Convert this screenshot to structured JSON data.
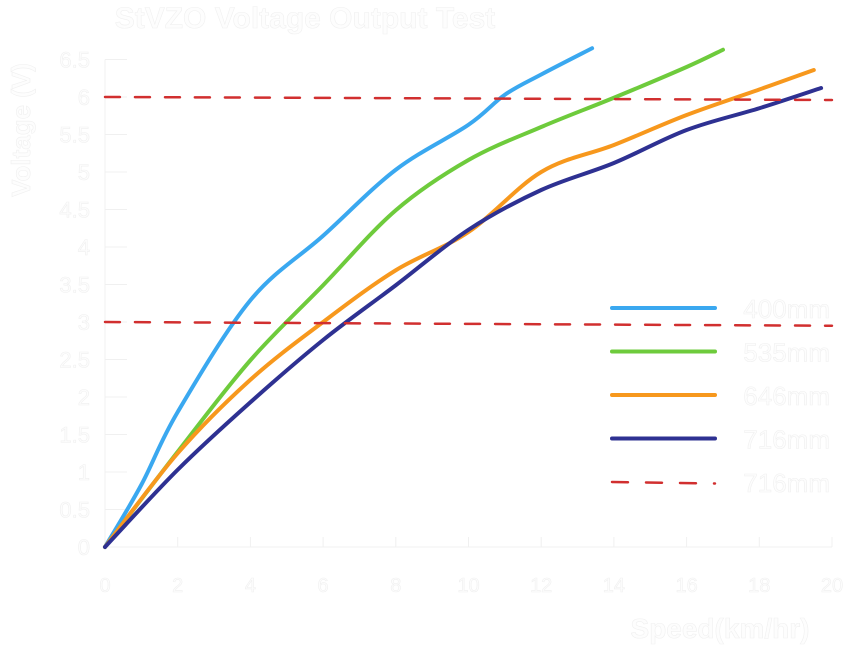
{
  "chart_data": {
    "type": "line",
    "title": "StVZO Voltage Output Test",
    "xlabel": "Speed(km/hr)",
    "ylabel": "Voltage (V)",
    "xlim": [
      0,
      20
    ],
    "ylim": [
      0,
      6.5
    ],
    "xticks": [
      "0",
      "2",
      "4",
      "6",
      "8",
      "10",
      "12",
      "14",
      "16",
      "18",
      "20"
    ],
    "yticks": [
      "0",
      "0.5",
      "1",
      "1.5",
      "2",
      "2.5",
      "3",
      "3.5",
      "4",
      "4.5",
      "5",
      "5.5",
      "6",
      "6.5"
    ],
    "grid": false,
    "legend_position": "right",
    "series": [
      {
        "name": "400mm",
        "color": "#3aa8f0",
        "dashed": false,
        "x": [
          0,
          1,
          2,
          4,
          6,
          8,
          10,
          11,
          12,
          13.4
        ],
        "y": [
          0,
          0.83,
          1.8,
          3.29,
          4.15,
          5.03,
          5.63,
          6.03,
          6.3,
          6.65
        ]
      },
      {
        "name": "535mm",
        "color": "#6ecb3c",
        "dashed": false,
        "x": [
          0,
          2,
          4,
          6,
          8,
          10,
          12,
          14,
          16,
          17
        ],
        "y": [
          0,
          1.27,
          2.49,
          3.49,
          4.49,
          5.16,
          5.6,
          5.99,
          6.4,
          6.63
        ]
      },
      {
        "name": "646mm",
        "color": "#f7981d",
        "dashed": false,
        "x": [
          0,
          2,
          4,
          6,
          8,
          10,
          12,
          14,
          16,
          18,
          19.5
        ],
        "y": [
          0,
          1.25,
          2.23,
          3.0,
          3.69,
          4.2,
          5.0,
          5.36,
          5.76,
          6.1,
          6.36
        ]
      },
      {
        "name": "716mm",
        "color": "#2e3192",
        "dashed": false,
        "x": [
          0,
          2,
          4,
          6,
          8,
          10,
          12,
          14,
          16,
          18,
          19.7
        ],
        "y": [
          0,
          1.03,
          1.93,
          2.76,
          3.49,
          4.23,
          4.76,
          5.12,
          5.56,
          5.85,
          6.12
        ]
      },
      {
        "name": "716mm",
        "color": "#d12f2f",
        "dashed": true,
        "x": [
          0,
          20
        ],
        "y": [
          6.0,
          5.96
        ]
      },
      {
        "name": "",
        "color": "#d12f2f",
        "dashed": true,
        "x": [
          0,
          20
        ],
        "y": [
          3.0,
          2.95
        ]
      }
    ]
  }
}
